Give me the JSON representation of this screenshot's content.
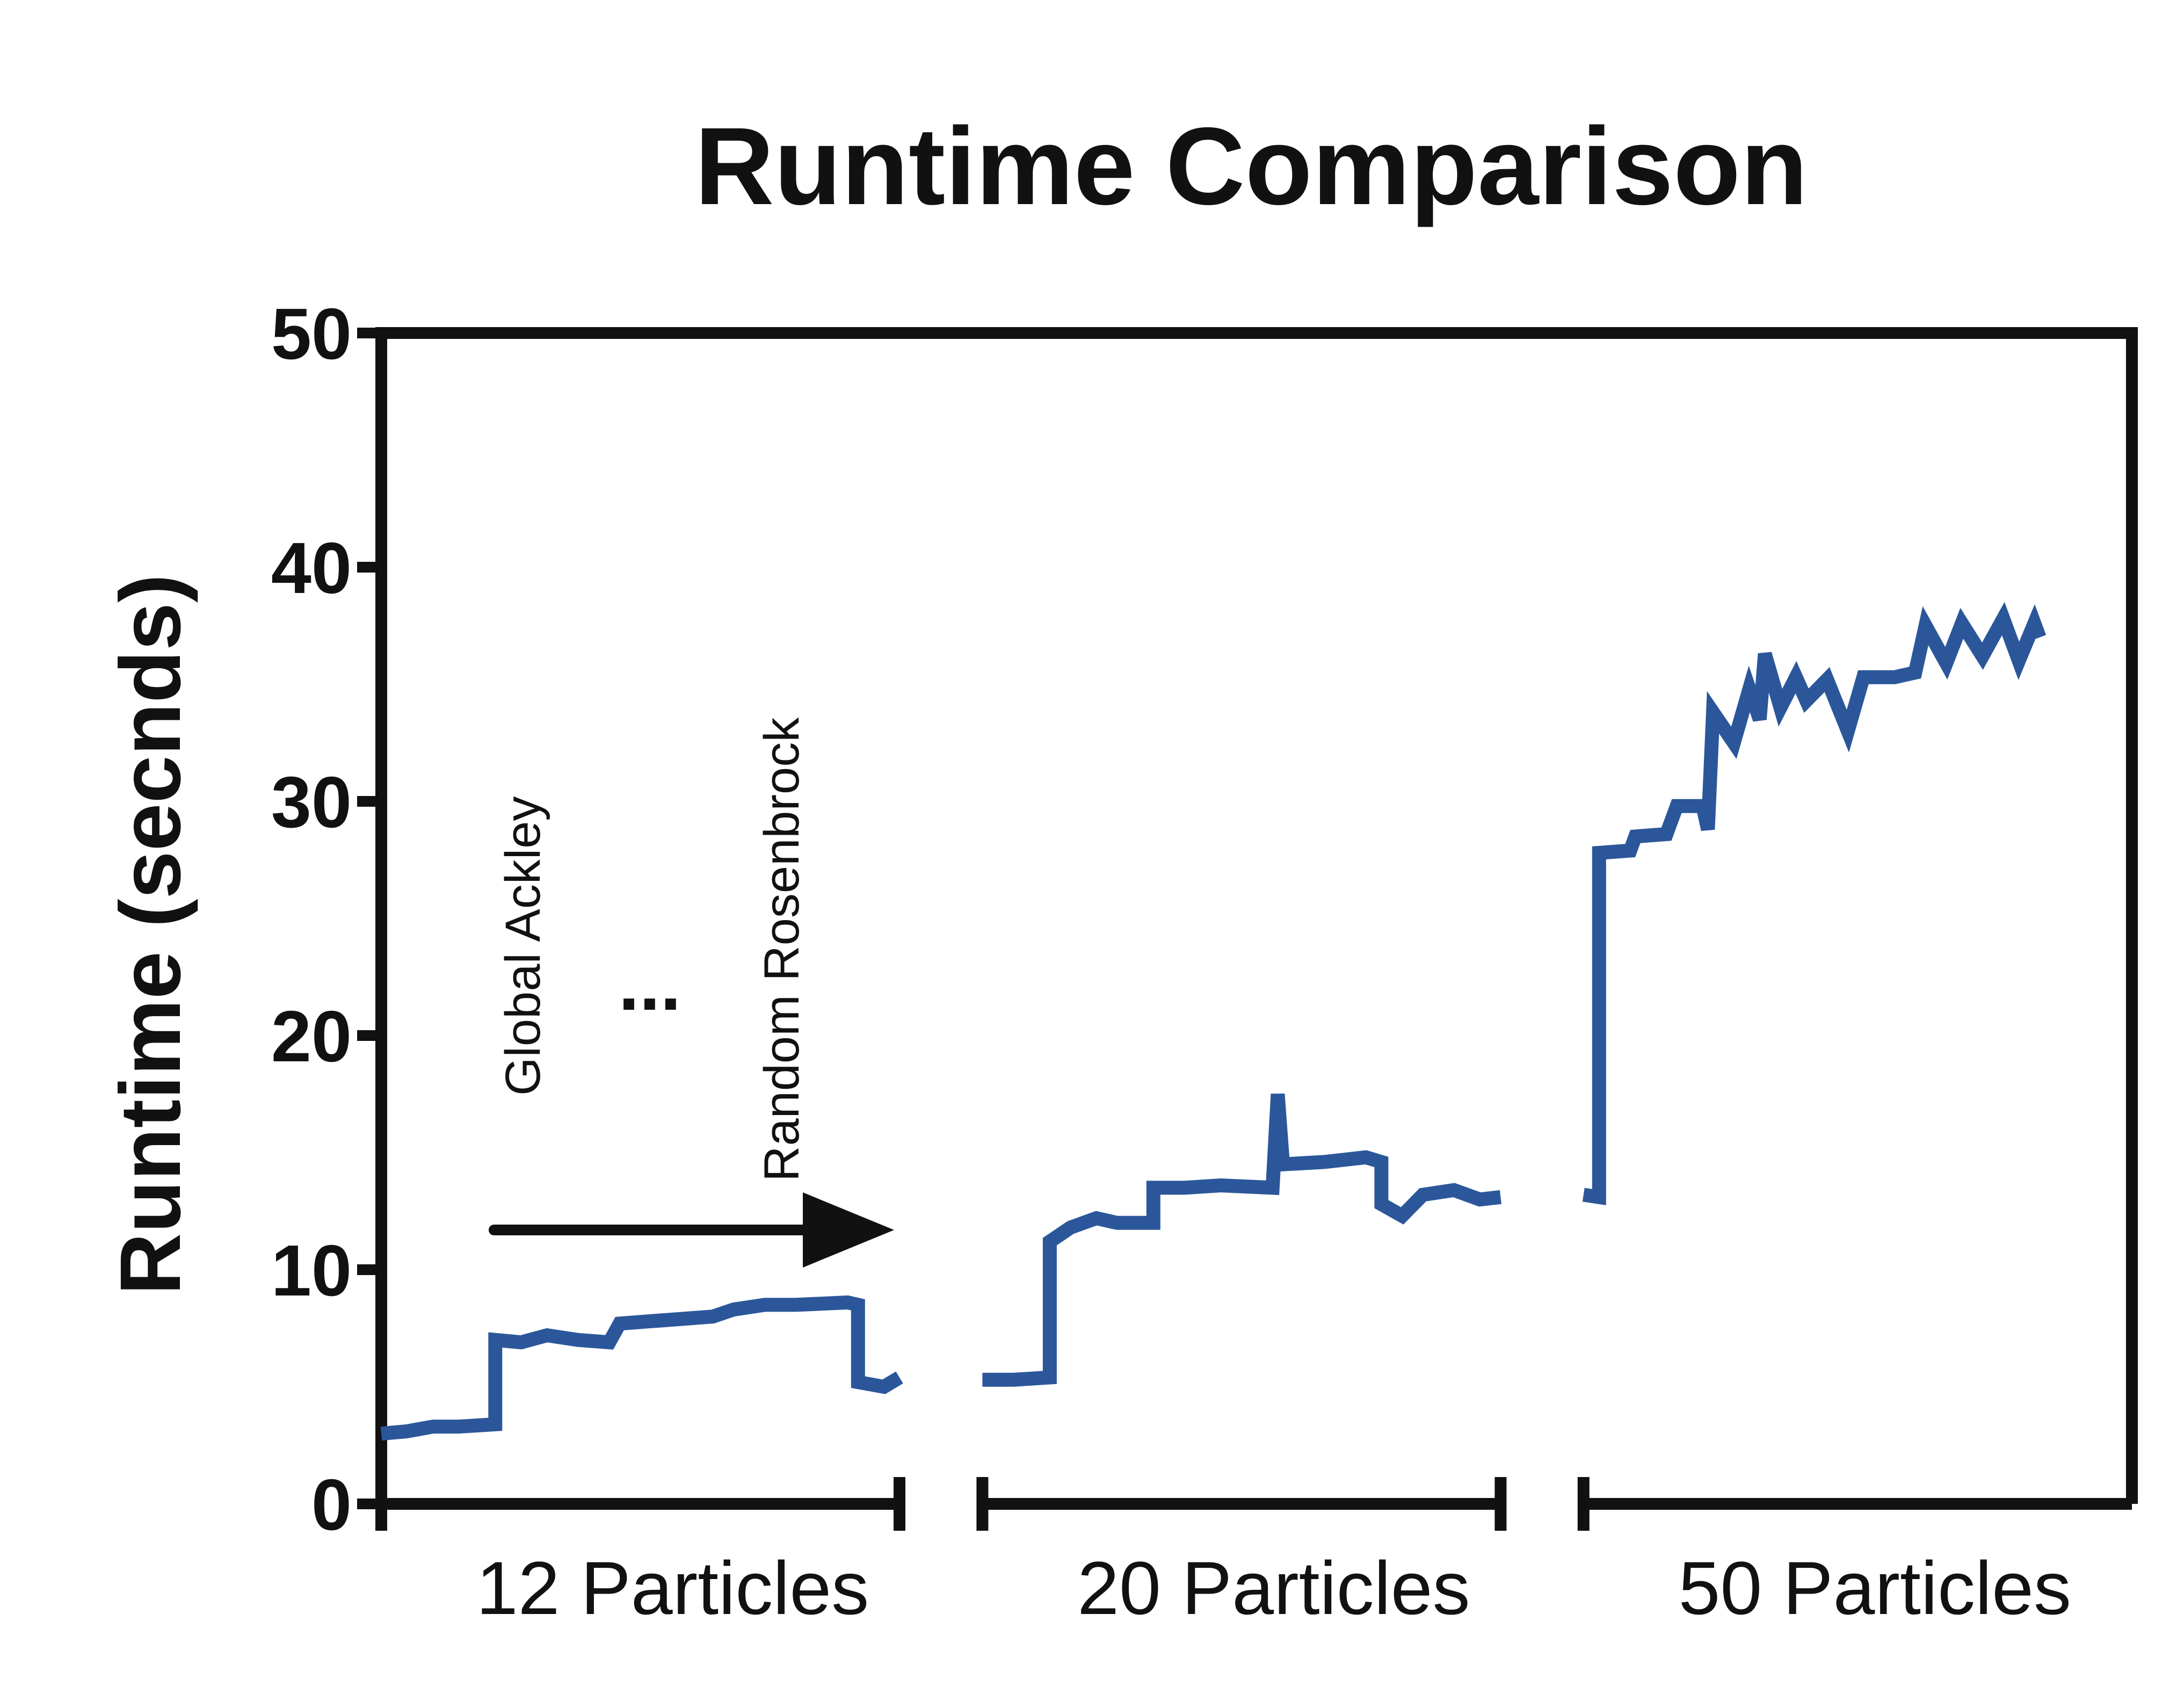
{
  "chart_data": {
    "type": "line",
    "title": "Runtime Comparison",
    "ylabel": "Runtime (secnds)",
    "xlabel": "",
    "ylim": [
      0,
      50
    ],
    "yticks": [
      0,
      10,
      20,
      30,
      40,
      50
    ],
    "grid": false,
    "legend": "none",
    "line_color": "#2b579a",
    "groups": [
      {
        "label": "12 Particles",
        "xrange": [
          0,
          1
        ]
      },
      {
        "label": "20 Particles",
        "xrange": [
          1.16,
          2.16
        ]
      },
      {
        "label": "50 Particles",
        "xrange": [
          2.32,
          3.32
        ]
      }
    ],
    "annotations": {
      "start_label": "Global Ackley",
      "ellipsis": "...",
      "end_label": "Random Rosenbrock"
    },
    "series": [
      {
        "points": [
          [
            0.0,
            3.0
          ],
          [
            0.05,
            3.1
          ],
          [
            0.1,
            3.3
          ],
          [
            0.15,
            3.3
          ],
          [
            0.22,
            3.4
          ],
          [
            0.22,
            7.0
          ],
          [
            0.27,
            6.9
          ],
          [
            0.32,
            7.2
          ],
          [
            0.38,
            7.0
          ],
          [
            0.44,
            6.9
          ],
          [
            0.46,
            7.7
          ],
          [
            0.52,
            7.8
          ],
          [
            0.58,
            7.9
          ],
          [
            0.64,
            8.0
          ],
          [
            0.68,
            8.3
          ],
          [
            0.74,
            8.5
          ],
          [
            0.8,
            8.5
          ],
          [
            0.9,
            8.6
          ],
          [
            0.92,
            8.5
          ],
          [
            0.92,
            5.2
          ],
          [
            0.97,
            5.0
          ],
          [
            1.0,
            5.4
          ]
        ]
      },
      {
        "points": [
          [
            1.16,
            5.3
          ],
          [
            1.22,
            5.3
          ],
          [
            1.29,
            5.4
          ],
          [
            1.29,
            11.2
          ],
          [
            1.33,
            11.8
          ],
          [
            1.38,
            12.2
          ],
          [
            1.42,
            12.0
          ],
          [
            1.49,
            12.0
          ],
          [
            1.49,
            13.5
          ],
          [
            1.55,
            13.5
          ],
          [
            1.62,
            13.6
          ],
          [
            1.72,
            13.5
          ],
          [
            1.73,
            17.5
          ],
          [
            1.74,
            14.5
          ],
          [
            1.82,
            14.6
          ],
          [
            1.9,
            14.8
          ],
          [
            1.93,
            14.6
          ],
          [
            1.93,
            12.8
          ],
          [
            1.97,
            12.3
          ],
          [
            2.01,
            13.2
          ],
          [
            2.07,
            13.4
          ],
          [
            2.12,
            13.0
          ],
          [
            2.16,
            13.1
          ]
        ]
      },
      {
        "points": [
          [
            2.32,
            13.2
          ],
          [
            2.35,
            13.1
          ],
          [
            2.35,
            27.8
          ],
          [
            2.41,
            27.9
          ],
          [
            2.42,
            28.5
          ],
          [
            2.48,
            28.6
          ],
          [
            2.5,
            29.8
          ],
          [
            2.55,
            29.8
          ],
          [
            2.56,
            28.8
          ],
          [
            2.57,
            33.8
          ],
          [
            2.61,
            32.5
          ],
          [
            2.64,
            34.8
          ],
          [
            2.66,
            33.5
          ],
          [
            2.67,
            36.3
          ],
          [
            2.7,
            34.0
          ],
          [
            2.73,
            35.3
          ],
          [
            2.75,
            34.3
          ],
          [
            2.79,
            35.2
          ],
          [
            2.83,
            33.0
          ],
          [
            2.86,
            35.3
          ],
          [
            2.92,
            35.3
          ],
          [
            2.96,
            35.5
          ],
          [
            2.98,
            37.5
          ],
          [
            3.02,
            35.9
          ],
          [
            3.05,
            37.6
          ],
          [
            3.09,
            36.2
          ],
          [
            3.13,
            37.8
          ],
          [
            3.16,
            36.0
          ],
          [
            3.19,
            37.6
          ],
          [
            3.2,
            37.0
          ]
        ]
      }
    ]
  }
}
